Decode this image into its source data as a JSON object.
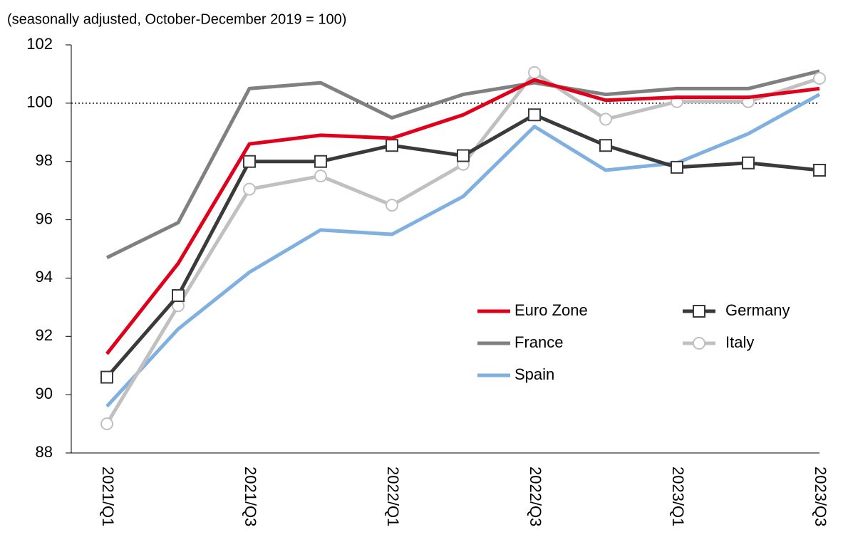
{
  "chart_data": {
    "type": "line",
    "subtitle": "(seasonally adjusted, October-December 2019 = 100)",
    "categories": [
      "2021/Q1",
      null,
      "2021/Q3",
      null,
      "2022/Q1",
      null,
      "2022/Q3",
      null,
      "2023/Q1",
      null,
      "2023/Q3"
    ],
    "series": [
      {
        "name": "Euro Zone",
        "color": "#e0001b",
        "marker": "none",
        "values": [
          91.4,
          94.5,
          98.6,
          98.9,
          98.8,
          99.6,
          100.8,
          100.1,
          100.2,
          100.2,
          100.5
        ]
      },
      {
        "name": "Germany",
        "color": "#3a3a3a",
        "marker": "square",
        "values": [
          90.6,
          93.4,
          98.0,
          98.0,
          98.55,
          98.2,
          99.6,
          98.55,
          97.8,
          97.95,
          97.7
        ]
      },
      {
        "name": "France",
        "color": "#808080",
        "marker": "none",
        "values": [
          94.7,
          95.9,
          100.5,
          100.7,
          99.5,
          100.3,
          100.7,
          100.3,
          100.5,
          100.5,
          101.1
        ]
      },
      {
        "name": "Italy",
        "color": "#c0c0c0",
        "marker": "circle",
        "values": [
          89.0,
          93.05,
          97.05,
          97.5,
          96.5,
          97.9,
          101.05,
          99.45,
          100.05,
          100.05,
          100.85
        ]
      },
      {
        "name": "Spain",
        "color": "#7fb0e0",
        "marker": "none",
        "values": [
          89.6,
          92.25,
          94.2,
          95.65,
          95.5,
          96.8,
          99.2,
          97.7,
          97.95,
          98.95,
          100.3
        ]
      }
    ],
    "ylim": [
      88,
      102
    ],
    "yticks": [
      88,
      90,
      92,
      94,
      96,
      98,
      100,
      102
    ],
    "reference_line": 100
  }
}
